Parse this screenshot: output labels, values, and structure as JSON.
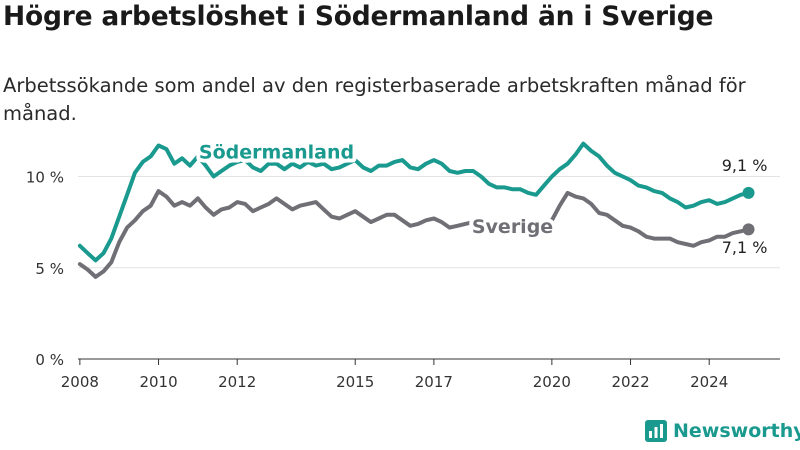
{
  "title": "Högre arbetslöshet i Södermanland än i Sverige",
  "subtitle": "Arbetssökande som andel av den registerbaserade arbetskraften månad för månad.",
  "brand": "Newsworthy",
  "colors": {
    "sodermanland": "#1a9a8f",
    "sverige": "#6f6f75",
    "grid": "#e3e3e3",
    "axis": "#333333"
  },
  "chart_data": {
    "type": "line",
    "title": "Högre arbetslöshet i Södermanland än i Sverige",
    "subtitle": "Arbetssökande som andel av den registerbaserade arbetskraften månad för månad.",
    "xlabel": "",
    "ylabel": "",
    "xlim": [
      2007.8,
      2025.8
    ],
    "ylim": [
      0,
      12
    ],
    "x_ticks": [
      2008,
      2010,
      2012,
      2015,
      2017,
      2020,
      2022,
      2024
    ],
    "x_tick_labels": [
      "2008",
      "2010",
      "2012",
      "2015",
      "2017",
      "2020",
      "2022",
      "2024"
    ],
    "y_ticks": [
      0,
      5,
      10
    ],
    "y_tick_labels": [
      "0 %",
      "5 %",
      "10 %"
    ],
    "grid": true,
    "series": [
      {
        "name": "Södermanland",
        "color": "#1a9a8f",
        "end_label": "9,1 %",
        "x": [
          2008.0,
          2008.2,
          2008.4,
          2008.6,
          2008.8,
          2009.0,
          2009.2,
          2009.4,
          2009.6,
          2009.8,
          2010.0,
          2010.2,
          2010.4,
          2010.6,
          2010.8,
          2011.0,
          2011.2,
          2011.4,
          2011.6,
          2011.8,
          2012.0,
          2012.2,
          2012.4,
          2012.6,
          2012.8,
          2013.0,
          2013.2,
          2013.4,
          2013.6,
          2013.8,
          2014.0,
          2014.2,
          2014.4,
          2014.6,
          2014.8,
          2015.0,
          2015.2,
          2015.4,
          2015.6,
          2015.8,
          2016.0,
          2016.2,
          2016.4,
          2016.6,
          2016.8,
          2017.0,
          2017.2,
          2017.4,
          2017.6,
          2017.8,
          2018.0,
          2018.2,
          2018.4,
          2018.6,
          2018.8,
          2019.0,
          2019.2,
          2019.4,
          2019.6,
          2019.8,
          2020.0,
          2020.2,
          2020.4,
          2020.6,
          2020.8,
          2021.0,
          2021.2,
          2021.4,
          2021.6,
          2021.8,
          2022.0,
          2022.2,
          2022.4,
          2022.6,
          2022.8,
          2023.0,
          2023.2,
          2023.4,
          2023.6,
          2023.8,
          2024.0,
          2024.2,
          2024.4,
          2024.6,
          2024.8,
          2025.0
        ],
        "values": [
          6.2,
          5.8,
          5.4,
          5.8,
          6.6,
          7.8,
          9.0,
          10.2,
          10.8,
          11.1,
          11.7,
          11.5,
          10.7,
          11.0,
          10.6,
          11.1,
          10.6,
          10.0,
          10.3,
          10.6,
          10.8,
          10.9,
          10.5,
          10.3,
          10.7,
          10.7,
          10.4,
          10.7,
          10.5,
          10.8,
          10.6,
          10.7,
          10.4,
          10.5,
          10.7,
          10.9,
          10.5,
          10.3,
          10.6,
          10.6,
          10.8,
          10.9,
          10.5,
          10.4,
          10.7,
          10.9,
          10.7,
          10.3,
          10.2,
          10.3,
          10.3,
          10.0,
          9.6,
          9.4,
          9.4,
          9.3,
          9.3,
          9.1,
          9.0,
          9.5,
          10.0,
          10.4,
          10.7,
          11.2,
          11.8,
          11.4,
          11.1,
          10.6,
          10.2,
          10.0,
          9.8,
          9.5,
          9.4,
          9.2,
          9.1,
          8.8,
          8.6,
          8.3,
          8.4,
          8.6,
          8.7,
          8.5,
          8.6,
          8.8,
          9.0,
          9.1
        ]
      },
      {
        "name": "Sverige",
        "color": "#6f6f75",
        "end_label": "7,1 %",
        "x": [
          2008.0,
          2008.2,
          2008.4,
          2008.6,
          2008.8,
          2009.0,
          2009.2,
          2009.4,
          2009.6,
          2009.8,
          2010.0,
          2010.2,
          2010.4,
          2010.6,
          2010.8,
          2011.0,
          2011.2,
          2011.4,
          2011.6,
          2011.8,
          2012.0,
          2012.2,
          2012.4,
          2012.6,
          2012.8,
          2013.0,
          2013.2,
          2013.4,
          2013.6,
          2013.8,
          2014.0,
          2014.2,
          2014.4,
          2014.6,
          2014.8,
          2015.0,
          2015.2,
          2015.4,
          2015.6,
          2015.8,
          2016.0,
          2016.2,
          2016.4,
          2016.6,
          2016.8,
          2017.0,
          2017.2,
          2017.4,
          2017.6,
          2017.8,
          2018.0,
          2018.2,
          2018.4,
          2018.6,
          2018.8,
          2019.0,
          2019.2,
          2019.4,
          2019.6,
          2019.8,
          2020.0,
          2020.2,
          2020.4,
          2020.6,
          2020.8,
          2021.0,
          2021.2,
          2021.4,
          2021.6,
          2021.8,
          2022.0,
          2022.2,
          2022.4,
          2022.6,
          2022.8,
          2023.0,
          2023.2,
          2023.4,
          2023.6,
          2023.8,
          2024.0,
          2024.2,
          2024.4,
          2024.6,
          2024.8,
          2025.0
        ],
        "values": [
          5.2,
          4.9,
          4.5,
          4.8,
          5.3,
          6.4,
          7.2,
          7.6,
          8.1,
          8.4,
          9.2,
          8.9,
          8.4,
          8.6,
          8.4,
          8.8,
          8.3,
          7.9,
          8.2,
          8.3,
          8.6,
          8.5,
          8.1,
          8.3,
          8.5,
          8.8,
          8.5,
          8.2,
          8.4,
          8.5,
          8.6,
          8.2,
          7.8,
          7.7,
          7.9,
          8.1,
          7.8,
          7.5,
          7.7,
          7.9,
          7.9,
          7.6,
          7.3,
          7.4,
          7.6,
          7.7,
          7.5,
          7.2,
          7.3,
          7.4,
          7.5,
          7.3,
          7.2,
          7.2,
          7.3,
          7.3,
          7.4,
          7.5,
          7.4,
          7.5,
          7.6,
          8.4,
          9.1,
          8.9,
          8.8,
          8.5,
          8.0,
          7.9,
          7.6,
          7.3,
          7.2,
          7.0,
          6.7,
          6.6,
          6.6,
          6.6,
          6.4,
          6.3,
          6.2,
          6.4,
          6.5,
          6.7,
          6.7,
          6.9,
          7.0,
          7.1
        ]
      }
    ],
    "annotations": [
      {
        "text": "Södermanland",
        "x": 2013.0,
        "y": 11.0,
        "series": "Södermanland"
      },
      {
        "text": "Sverige",
        "x": 2019.0,
        "y": 6.9,
        "series": "Sverige"
      },
      {
        "text": "9,1 %",
        "x": 2024.9,
        "y": 10.3,
        "series": "Södermanland"
      },
      {
        "text": "7,1 %",
        "x": 2024.9,
        "y": 5.8,
        "series": "Sverige"
      }
    ]
  }
}
